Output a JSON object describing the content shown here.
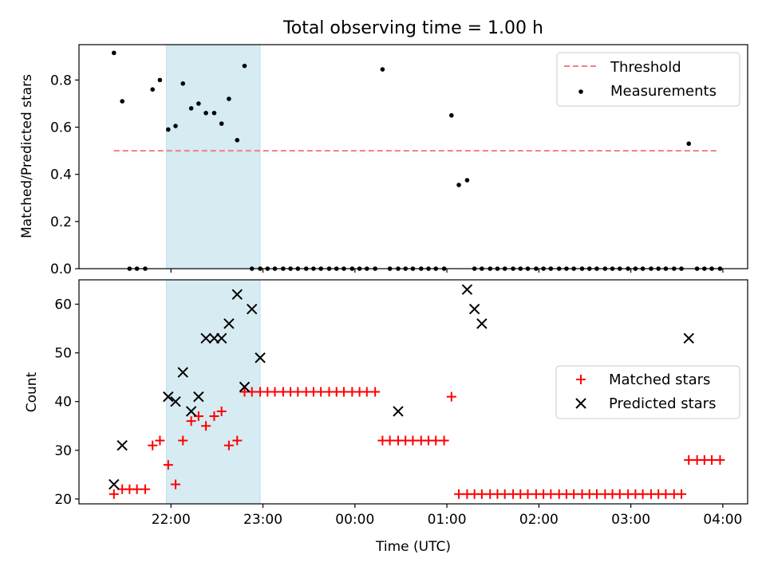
{
  "figure": {
    "title": "Total observing time = 1.00 h"
  },
  "chart_data": [
    {
      "type": "scatter",
      "ylabel": "Matched/Predicted stars",
      "x_axis": "time (UTC), hours; 24 = 00:00 next day",
      "xlim": [
        21.0,
        28.27
      ],
      "ylim": [
        0,
        0.95
      ],
      "yticks": [
        0.0,
        0.2,
        0.4,
        0.6,
        0.8
      ],
      "ytick_labels": [
        "0.0",
        "0.2",
        "0.4",
        "0.6",
        "0.8"
      ],
      "shaded_span": [
        21.95,
        22.97
      ],
      "threshold": {
        "name": "Threshold",
        "y": 0.5,
        "x_range": [
          21.38,
          27.93
        ],
        "color": "#f08080",
        "style": "dashed"
      },
      "legend": {
        "position": "upper right",
        "entries": [
          "Threshold",
          "Measurements"
        ]
      },
      "series": [
        {
          "name": "Measurements",
          "color": "#000000",
          "marker": "dot",
          "x": [
            21.38,
            21.47,
            21.55,
            21.63,
            21.72,
            21.8,
            21.88,
            21.97,
            22.05,
            22.13,
            22.22,
            22.3,
            22.38,
            22.47,
            22.55,
            22.63,
            22.72,
            22.8,
            22.88,
            22.97,
            23.05,
            23.13,
            23.22,
            23.3,
            23.38,
            23.47,
            23.55,
            23.63,
            23.72,
            23.8,
            23.88,
            23.97,
            24.05,
            24.13,
            24.22,
            24.3,
            24.38,
            24.47,
            24.55,
            24.63,
            24.72,
            24.8,
            24.88,
            24.97,
            25.05,
            25.13,
            25.22,
            25.3,
            25.38,
            25.47,
            25.55,
            25.63,
            25.72,
            25.8,
            25.88,
            25.97,
            26.05,
            26.13,
            26.22,
            26.3,
            26.38,
            26.47,
            26.55,
            26.63,
            26.72,
            26.8,
            26.88,
            26.97,
            27.05,
            27.13,
            27.22,
            27.3,
            27.38,
            27.47,
            27.55,
            27.63,
            27.72,
            27.8,
            27.88,
            27.97
          ],
          "y": [
            0.915,
            0.71,
            0,
            0,
            0,
            0.76,
            0.8,
            0.59,
            0.605,
            0.785,
            0.68,
            0.7,
            0.66,
            0.66,
            0.615,
            0.72,
            0.545,
            0.86,
            0,
            0,
            0,
            0,
            0,
            0,
            0,
            0,
            0,
            0,
            0,
            0,
            0,
            0,
            0,
            0,
            0,
            0.845,
            0,
            0,
            0,
            0,
            0,
            0,
            0,
            0,
            0.65,
            0.355,
            0.375,
            0,
            0,
            0,
            0,
            0,
            0,
            0,
            0,
            0,
            0,
            0,
            0,
            0,
            0,
            0,
            0,
            0,
            0,
            0,
            0,
            0,
            0,
            0,
            0,
            0,
            0,
            0,
            0,
            0.53,
            0,
            0,
            0,
            0
          ]
        }
      ]
    },
    {
      "type": "scatter",
      "ylabel": "Count",
      "xlabel": "Time (UTC)",
      "x_axis": "time (UTC), hours; 24 = 00:00 next day",
      "xlim": [
        21.0,
        28.27
      ],
      "ylim": [
        19,
        65
      ],
      "yticks": [
        20,
        30,
        40,
        50,
        60
      ],
      "ytick_labels": [
        "20",
        "30",
        "40",
        "50",
        "60"
      ],
      "xticks": [
        22,
        23,
        24,
        25,
        26,
        27,
        28
      ],
      "xtick_labels": [
        "22:00",
        "23:00",
        "00:00",
        "01:00",
        "02:00",
        "03:00",
        "04:00"
      ],
      "shaded_span": [
        21.95,
        22.97
      ],
      "legend": {
        "position": "center right",
        "entries": [
          "Matched stars",
          "Predicted stars"
        ]
      },
      "series": [
        {
          "name": "Matched stars",
          "color": "#ff0000",
          "marker": "plus",
          "x": [
            21.38,
            21.47,
            21.55,
            21.63,
            21.72,
            21.8,
            21.88,
            21.97,
            22.05,
            22.13,
            22.22,
            22.3,
            22.38,
            22.47,
            22.55,
            22.63,
            22.72,
            22.8,
            22.88,
            22.97,
            23.05,
            23.13,
            23.22,
            23.3,
            23.38,
            23.47,
            23.55,
            23.63,
            23.72,
            23.8,
            23.88,
            23.97,
            24.05,
            24.13,
            24.22,
            24.3,
            24.38,
            24.47,
            24.55,
            24.63,
            24.72,
            24.8,
            24.88,
            24.97,
            25.05,
            25.13,
            25.22,
            25.3,
            25.38,
            25.47,
            25.55,
            25.63,
            25.72,
            25.8,
            25.88,
            25.97,
            26.05,
            26.13,
            26.22,
            26.3,
            26.38,
            26.47,
            26.55,
            26.63,
            26.72,
            26.8,
            26.88,
            26.97,
            27.05,
            27.13,
            27.22,
            27.3,
            27.38,
            27.47,
            27.55,
            27.63,
            27.72,
            27.8,
            27.88,
            27.97
          ],
          "y": [
            21,
            22,
            22,
            22,
            22,
            31,
            32,
            27,
            23,
            32,
            36,
            37,
            35,
            37,
            38,
            31,
            32,
            42,
            42,
            42,
            42,
            42,
            42,
            42,
            42,
            42,
            42,
            42,
            42,
            42,
            42,
            42,
            42,
            42,
            42,
            32,
            32,
            32,
            32,
            32,
            32,
            32,
            32,
            32,
            41,
            21,
            21,
            21,
            21,
            21,
            21,
            21,
            21,
            21,
            21,
            21,
            21,
            21,
            21,
            21,
            21,
            21,
            21,
            21,
            21,
            21,
            21,
            21,
            21,
            21,
            21,
            21,
            21,
            21,
            21,
            28,
            28,
            28,
            28,
            28
          ]
        },
        {
          "name": "Predicted stars",
          "color": "#000000",
          "marker": "x",
          "x": [
            21.38,
            21.47,
            21.97,
            22.05,
            22.13,
            22.22,
            22.3,
            22.38,
            22.47,
            22.55,
            22.63,
            22.72,
            22.8,
            22.88,
            22.97,
            24.47,
            25.22,
            25.3,
            25.38,
            27.63
          ],
          "y": [
            23,
            31,
            41,
            40,
            46,
            38,
            41,
            53,
            53,
            53,
            56,
            62,
            43,
            59,
            49,
            38,
            63,
            59,
            56,
            53
          ]
        }
      ]
    }
  ]
}
